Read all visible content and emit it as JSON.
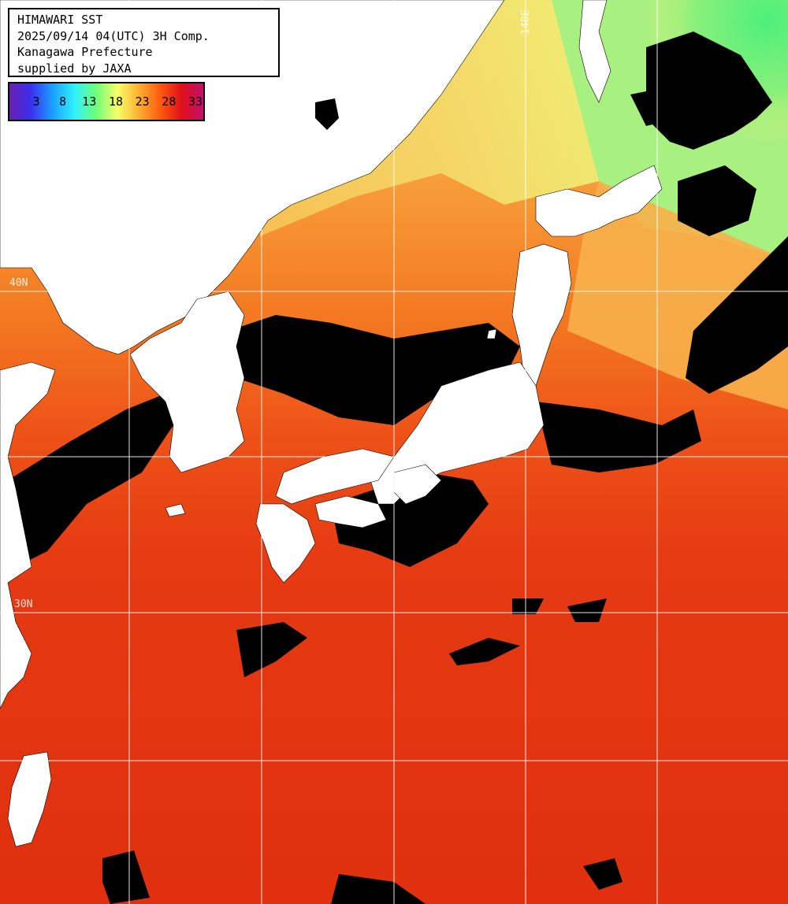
{
  "info": {
    "line1": "HIMAWARI SST",
    "line2": "2025/09/14 04(UTC) 3H Comp.",
    "line3": "Kanagawa Prefecture",
    "line4": "supplied by JAXA"
  },
  "legend": {
    "labels": [
      "3",
      "8",
      "13",
      "18",
      "23",
      "28",
      "33"
    ],
    "colors": [
      "#6a1fb0",
      "#3b2ff0",
      "#1aa0ff",
      "#2ff0ff",
      "#6cff7a",
      "#f6ff6a",
      "#ffb030",
      "#ff5a10",
      "#e0101a",
      "#c01070"
    ]
  },
  "grid": {
    "lat_labels": [
      "40N",
      "30N"
    ],
    "lon_labels": [
      "140E"
    ]
  },
  "colors": {
    "warm_sea": "#e03a12",
    "land": "#ffffff",
    "cloud": "#000000",
    "grid_line": "#ffffff"
  }
}
